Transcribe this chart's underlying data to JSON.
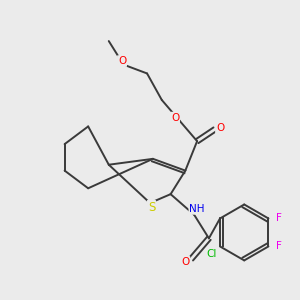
{
  "bg_color": "#ebebeb",
  "bond_color": "#3a3a3a",
  "atom_colors": {
    "O": "#ff0000",
    "S": "#cccc00",
    "N": "#0000ee",
    "F": "#ee00ee",
    "Cl": "#00bb00",
    "C": "#3a3a3a"
  },
  "lw": 1.4,
  "fs": 7.5
}
